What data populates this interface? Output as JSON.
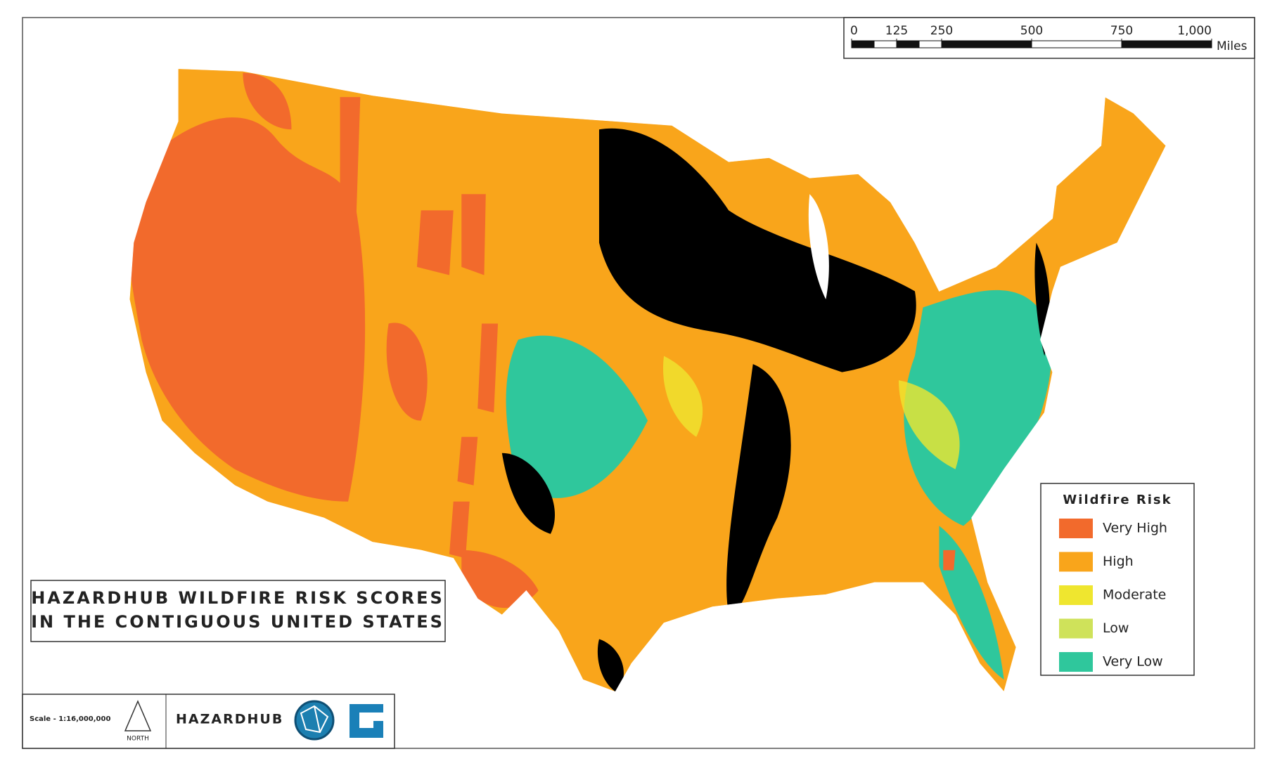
{
  "title": {
    "lines": [
      "HAZARDHUB WILDFIRE RISK SCORES",
      "IN THE CONTIGUOUS UNITED STATES"
    ]
  },
  "legend": {
    "title": "Wildfire Risk",
    "items": [
      {
        "label": "Very High",
        "color": "#f26a2c"
      },
      {
        "label": "High",
        "color": "#f9a51b"
      },
      {
        "label": "Moderate",
        "color": "#efe62f"
      },
      {
        "label": "Low",
        "color": "#cfe25a"
      },
      {
        "label": "Very Low",
        "color": "#2fc79c"
      }
    ]
  },
  "scale_bar": {
    "ticks": [
      0,
      125,
      250,
      500,
      750,
      {
        "value": 1000,
        "label": "1,000"
      }
    ],
    "unit": "Miles"
  },
  "footer": {
    "scale": "Scale - 1:16,000,000",
    "north": "NORTH",
    "brand": "HAZARDHUB"
  }
}
